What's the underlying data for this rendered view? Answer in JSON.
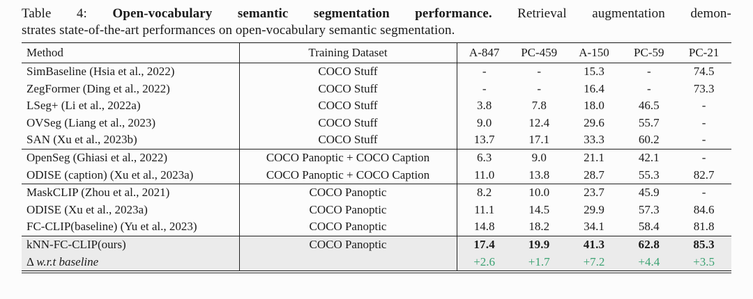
{
  "caption": {
    "label": "Table 4:",
    "title_bold": "Open-vocabulary semantic segmentation performance.",
    "line1_rest": "Retrieval augmentation demon-",
    "line2": "strates state-of-the-art performances on open-vocabulary semantic segmentation."
  },
  "table": {
    "columns": [
      "Method",
      "Training Dataset",
      "A-847",
      "PC-459",
      "A-150",
      "PC-59",
      "PC-21"
    ],
    "colors": {
      "delta_green": "#3ba272",
      "highlight_bg": "#ebebeb"
    },
    "groups": [
      {
        "name": "coco-stuff-group",
        "highlight": false,
        "rows": [
          {
            "variant": "normal",
            "method": "SimBaseline (Hsia et al., 2022)",
            "dataset": "COCO Stuff",
            "values": [
              "-",
              "-",
              "15.3",
              "-",
              "74.5"
            ]
          },
          {
            "variant": "normal",
            "method": "ZegFormer (Ding et al., 2022)",
            "dataset": "COCO Stuff",
            "values": [
              "-",
              "-",
              "16.4",
              "-",
              "73.3"
            ]
          },
          {
            "variant": "normal",
            "method": "LSeg+ (Li et al., 2022a)",
            "dataset": "COCO Stuff",
            "values": [
              "3.8",
              "7.8",
              "18.0",
              "46.5",
              "-"
            ]
          },
          {
            "variant": "normal",
            "method": "OVSeg (Liang et al., 2023)",
            "dataset": "COCO Stuff",
            "values": [
              "9.0",
              "12.4",
              "29.6",
              "55.7",
              "-"
            ]
          },
          {
            "variant": "normal",
            "method": "SAN (Xu et al., 2023b)",
            "dataset": "COCO Stuff",
            "values": [
              "13.7",
              "17.1",
              "33.3",
              "60.2",
              "-"
            ]
          }
        ]
      },
      {
        "name": "coco-panoptic-caption-group",
        "highlight": false,
        "rows": [
          {
            "variant": "normal",
            "method": "OpenSeg (Ghiasi et al., 2022)",
            "dataset": "COCO Panoptic + COCO Caption",
            "values": [
              "6.3",
              "9.0",
              "21.1",
              "42.1",
              "-"
            ]
          },
          {
            "variant": "normal",
            "method": "ODISE (caption) (Xu et al., 2023a)",
            "dataset": "COCO Panoptic + COCO Caption",
            "values": [
              "11.0",
              "13.8",
              "28.7",
              "55.3",
              "82.7"
            ]
          }
        ]
      },
      {
        "name": "coco-panoptic-group",
        "highlight": false,
        "rows": [
          {
            "variant": "normal",
            "method": "MaskCLIP (Zhou et al., 2021)",
            "dataset": "COCO Panoptic",
            "values": [
              "8.2",
              "10.0",
              "23.7",
              "45.9",
              "-"
            ]
          },
          {
            "variant": "normal",
            "method": "ODISE (Xu et al., 2023a)",
            "dataset": "COCO Panoptic",
            "values": [
              "11.1",
              "14.5",
              "29.9",
              "57.3",
              "84.6"
            ]
          },
          {
            "variant": "normal",
            "method": "FC-CLIP(baseline) (Yu et al., 2023)",
            "dataset": "COCO Panoptic",
            "values": [
              "14.8",
              "18.2",
              "34.1",
              "58.4",
              "81.8"
            ]
          }
        ]
      },
      {
        "name": "ours-group",
        "highlight": true,
        "rows": [
          {
            "variant": "best",
            "method": "kNN-FC-CLIP(ours)",
            "dataset": "COCO Panoptic",
            "values": [
              "17.4",
              "19.9",
              "41.3",
              "62.8",
              "85.3"
            ]
          },
          {
            "variant": "delta",
            "method": "Δ w.r.t baseline",
            "dataset": "",
            "values": [
              "+2.6",
              "+1.7",
              "+7.2",
              "+4.4",
              "+3.5"
            ]
          }
        ]
      }
    ]
  }
}
